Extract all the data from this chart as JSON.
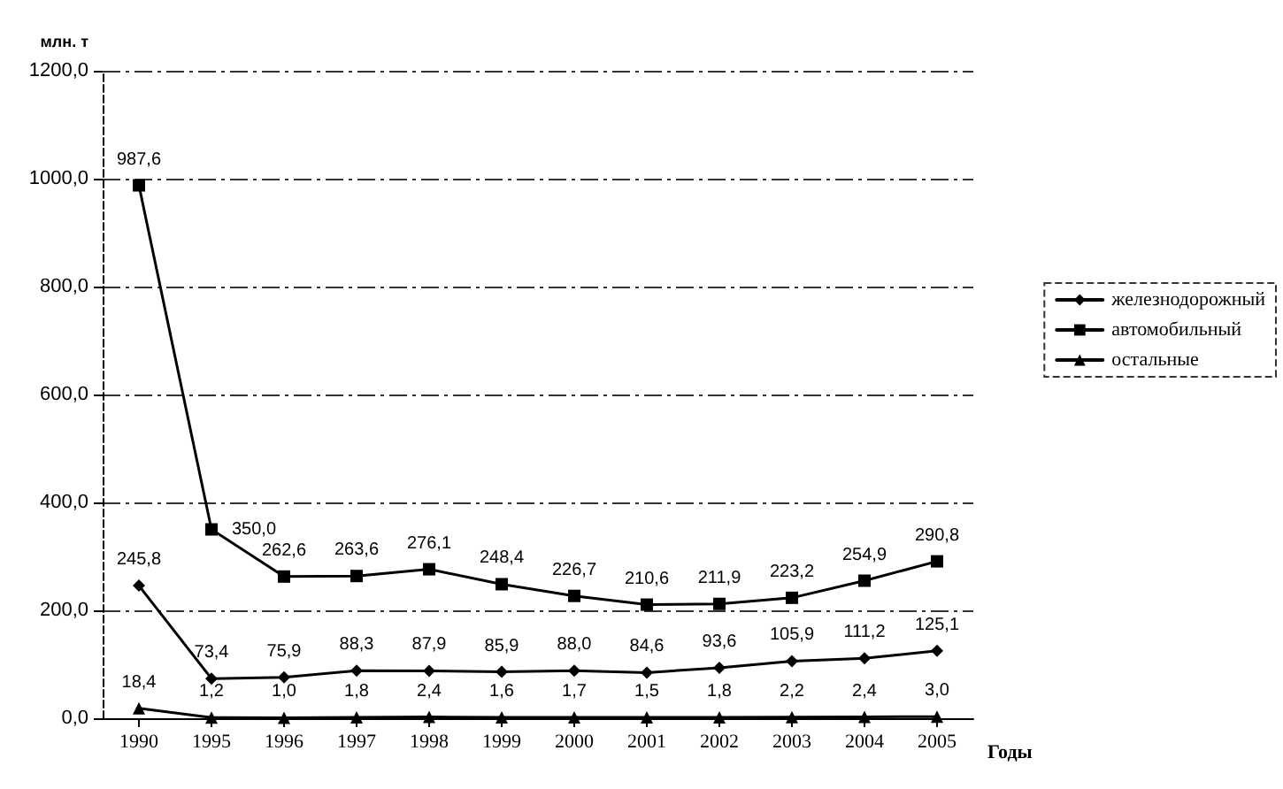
{
  "chart_data": {
    "type": "line",
    "ylabel": "млн. т",
    "xlabel": "Годы",
    "categories": [
      "1990",
      "1995",
      "1996",
      "1997",
      "1998",
      "1999",
      "2000",
      "2001",
      "2002",
      "2003",
      "2004",
      "2005"
    ],
    "series": [
      {
        "name": "железнодорожный",
        "color": "#000000",
        "marker": "diamond",
        "values": [
          245.8,
          73.4,
          75.9,
          88.3,
          87.9,
          85.9,
          88.0,
          84.6,
          93.6,
          105.9,
          111.2,
          125.1
        ],
        "value_labels": [
          "245,8",
          "73,4",
          "75,9",
          "88,3",
          "87,9",
          "85,9",
          "88,0",
          "84,6",
          "93,6",
          "105,9",
          "111,2",
          "125,1"
        ]
      },
      {
        "name": "автомобильный",
        "color": "#000000",
        "marker": "square",
        "values": [
          987.6,
          350.0,
          262.6,
          263.6,
          276.1,
          248.4,
          226.7,
          210.6,
          211.9,
          223.2,
          254.9,
          290.8
        ],
        "value_labels": [
          "987,6",
          "350,0",
          "262,6",
          "263,6",
          "276,1",
          "248,4",
          "226,7",
          "210,6",
          "211,9",
          "223,2",
          "254,9",
          "290,8"
        ]
      },
      {
        "name": "остальные",
        "color": "#000000",
        "marker": "triangle",
        "values": [
          18.4,
          1.2,
          1.0,
          1.8,
          2.4,
          1.6,
          1.7,
          1.5,
          1.8,
          2.2,
          2.4,
          3.0
        ],
        "value_labels": [
          "18,4",
          "1,2",
          "1,0",
          "1,8",
          "2,4",
          "1,6",
          "1,7",
          "1,5",
          "1,8",
          "2,2",
          "2,4",
          "3,0"
        ]
      }
    ],
    "ylim": [
      0,
      1200
    ],
    "yticks": [
      {
        "value": 0,
        "label": "0,0"
      },
      {
        "value": 200,
        "label": "200,0"
      },
      {
        "value": 400,
        "label": "400,0"
      },
      {
        "value": 600,
        "label": "600,0"
      },
      {
        "value": 800,
        "label": "800,0"
      },
      {
        "value": 1000,
        "label": "1000,0"
      },
      {
        "value": 1200,
        "label": "1200,0"
      }
    ],
    "grid": "y",
    "legend": "right",
    "line_style": "solid"
  }
}
